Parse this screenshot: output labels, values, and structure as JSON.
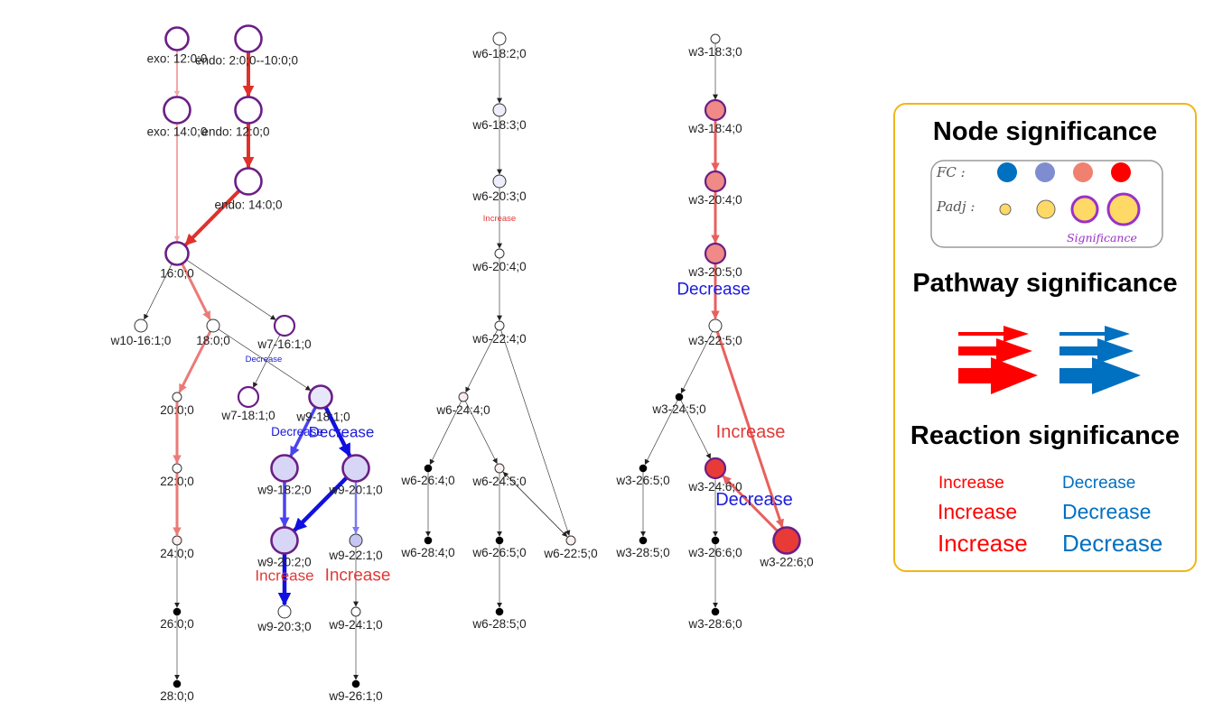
{
  "nodes": [
    {
      "id": "n1",
      "label": "exo: 12:0;0",
      "fill": "#ffffff",
      "border": "#6b1e86",
      "size": "l"
    },
    {
      "id": "n2",
      "label": "endo: 2:0;0--10:0;0",
      "fill": "#ffffff",
      "border": "#6b1e86",
      "size": "xl"
    },
    {
      "id": "n3",
      "label": "exo: 14:0;0",
      "fill": "#ffffff",
      "border": "#6b1e86",
      "size": "xl"
    },
    {
      "id": "n4",
      "label": "endo: 12:0;0",
      "fill": "#ffffff",
      "border": "#6b1e86",
      "size": "xl"
    },
    {
      "id": "n5",
      "label": "endo: 14:0;0",
      "fill": "#ffffff",
      "border": "#6b1e86",
      "size": "xl"
    },
    {
      "id": "n6",
      "label": "16:0;0",
      "fill": "#ffffff",
      "border": "#6b1e86",
      "size": "l"
    },
    {
      "id": "n7",
      "label": "w10-16:1;0",
      "fill": "#ffffff",
      "border": "#333333",
      "size": "s"
    },
    {
      "id": "n8",
      "label": "18:0;0",
      "fill": "#ffffff",
      "border": "#333333",
      "size": "s"
    },
    {
      "id": "n9",
      "label": "w7-16:1;0",
      "fill": "#ffffff",
      "border": "#6b1e86",
      "size": "m"
    },
    {
      "id": "n10",
      "label": "20:0;0",
      "fill": "#ffffff",
      "border": "#333333",
      "size": "xs"
    },
    {
      "id": "n11",
      "label": "w7-18:1;0",
      "fill": "#ffffff",
      "border": "#6b1e86",
      "size": "m"
    },
    {
      "id": "n12",
      "label": "w9-18:1;0",
      "fill": "#e7e7fb",
      "border": "#6b1e86",
      "size": "l"
    },
    {
      "id": "n13",
      "label": "22:0;0",
      "fill": "#ffffff",
      "border": "#333333",
      "size": "xs"
    },
    {
      "id": "n14",
      "label": "w9-18:2;0",
      "fill": "#d7d6f6",
      "border": "#6b1e86",
      "size": "xl"
    },
    {
      "id": "n15",
      "label": "w9-20:1;0",
      "fill": "#d7d6f6",
      "border": "#6b1e86",
      "size": "xl"
    },
    {
      "id": "n16",
      "label": "24:0;0",
      "fill": "#fcecec",
      "border": "#333333",
      "size": "xs"
    },
    {
      "id": "n17",
      "label": "w9-20:2;0",
      "fill": "#d7d6f6",
      "border": "#6b1e86",
      "size": "xl"
    },
    {
      "id": "n18",
      "label": "w9-22:1;0",
      "fill": "#c7c5f2",
      "border": "#333333",
      "size": "s"
    },
    {
      "id": "n19",
      "label": "26:0;0",
      "fill": "#000000",
      "border": "#000000",
      "size": "dot"
    },
    {
      "id": "n20",
      "label": "w9-20:3;0",
      "fill": "#ffffff",
      "border": "#333333",
      "size": "s"
    },
    {
      "id": "n21",
      "label": "w9-24:1;0",
      "fill": "#ffffff",
      "border": "#333333",
      "size": "xs"
    },
    {
      "id": "n22",
      "label": "28:0;0",
      "fill": "#000000",
      "border": "#000000",
      "size": "dot"
    },
    {
      "id": "n23",
      "label": "w9-26:1;0",
      "fill": "#000000",
      "border": "#000000",
      "size": "dot"
    },
    {
      "id": "m1",
      "label": "w6-18:2;0",
      "fill": "#ffffff",
      "border": "#333333",
      "size": "s"
    },
    {
      "id": "m2",
      "label": "w6-18:3;0",
      "fill": "#ededfb",
      "border": "#333333",
      "size": "s"
    },
    {
      "id": "m3",
      "label": "w6-20:3;0",
      "fill": "#ededfb",
      "border": "#333333",
      "size": "s"
    },
    {
      "id": "m4",
      "label": "w6-20:4;0",
      "fill": "#ffffff",
      "border": "#333333",
      "size": "xs"
    },
    {
      "id": "m5",
      "label": "w6-22:4;0",
      "fill": "#ffffff",
      "border": "#333333",
      "size": "xs"
    },
    {
      "id": "m6",
      "label": "w6-24:4;0",
      "fill": "#fbecec",
      "border": "#333333",
      "size": "xs"
    },
    {
      "id": "m7",
      "label": "w6-26:4;0",
      "fill": "#000000",
      "border": "#000000",
      "size": "dot"
    },
    {
      "id": "m8",
      "label": "w6-24:5;0",
      "fill": "#fdf0f0",
      "border": "#333333",
      "size": "xs"
    },
    {
      "id": "m9",
      "label": "w6-22:5;0",
      "fill": "#fdf0f0",
      "border": "#333333",
      "size": "xs"
    },
    {
      "id": "m10",
      "label": "w6-28:4;0",
      "fill": "#000000",
      "border": "#000000",
      "size": "dot"
    },
    {
      "id": "m11",
      "label": "w6-26:5;0",
      "fill": "#000000",
      "border": "#000000",
      "size": "dot"
    },
    {
      "id": "m12",
      "label": "w6-28:5;0",
      "fill": "#000000",
      "border": "#000000",
      "size": "dot"
    },
    {
      "id": "r1",
      "label": "w3-18:3;0",
      "fill": "#ffffff",
      "border": "#333333",
      "size": "xs"
    },
    {
      "id": "r2",
      "label": "w3-18:4;0",
      "fill": "#ef8a86",
      "border": "#6b1e86",
      "size": "m"
    },
    {
      "id": "r3",
      "label": "w3-20:4;0",
      "fill": "#ef8a86",
      "border": "#6b1e86",
      "size": "m"
    },
    {
      "id": "r4",
      "label": "w3-20:5;0",
      "fill": "#ef8a86",
      "border": "#6b1e86",
      "size": "m"
    },
    {
      "id": "r5",
      "label": "w3-22:5;0",
      "fill": "#ffffff",
      "border": "#333333",
      "size": "s"
    },
    {
      "id": "r6",
      "label": "w3-24:5;0",
      "fill": "#000000",
      "border": "#000000",
      "size": "dot"
    },
    {
      "id": "r7",
      "label": "w3-26:5;0",
      "fill": "#000000",
      "border": "#000000",
      "size": "dot"
    },
    {
      "id": "r8",
      "label": "w3-24:6;0",
      "fill": "#e83b37",
      "border": "#6b1e86",
      "size": "m"
    },
    {
      "id": "r9",
      "label": "w3-22:6;0",
      "fill": "#e83b37",
      "border": "#6b1e86",
      "size": "xl"
    },
    {
      "id": "r10",
      "label": "w3-28:5;0",
      "fill": "#000000",
      "border": "#000000",
      "size": "dot"
    },
    {
      "id": "r11",
      "label": "w3-26:6;0",
      "fill": "#000000",
      "border": "#000000",
      "size": "dot"
    },
    {
      "id": "r12",
      "label": "w3-28:6;0",
      "fill": "#000000",
      "border": "#000000",
      "size": "dot"
    }
  ],
  "edges": [
    {
      "from": "n1",
      "to": "n3",
      "color": "#f2a8a8",
      "weight": "2"
    },
    {
      "from": "n2",
      "to": "n4",
      "color": "#e0302a",
      "weight": "4"
    },
    {
      "from": "n3",
      "to": "n6",
      "color": "#f2a8a8",
      "weight": "2"
    },
    {
      "from": "n4",
      "to": "n5",
      "color": "#e0302a",
      "weight": "4"
    },
    {
      "from": "n5",
      "to": "n6",
      "color": "#e0302a",
      "weight": "4"
    },
    {
      "from": "n6",
      "to": "n7",
      "color": "#222222",
      "weight": "0.6"
    },
    {
      "from": "n6",
      "to": "n8",
      "color": "#eb7b78",
      "weight": "3"
    },
    {
      "from": "n6",
      "to": "n9",
      "color": "#222222",
      "weight": "0.6"
    },
    {
      "from": "n8",
      "to": "n10",
      "color": "#eb7b78",
      "weight": "3"
    },
    {
      "from": "n8",
      "to": "n12",
      "color": "#222222",
      "weight": "0.6"
    },
    {
      "from": "n9",
      "to": "n11",
      "color": "#222222",
      "weight": "0.6"
    },
    {
      "from": "n10",
      "to": "n13",
      "color": "#eb7b78",
      "weight": "3"
    },
    {
      "from": "n12",
      "to": "n14",
      "color": "#4a43f0",
      "weight": "3.5"
    },
    {
      "from": "n12",
      "to": "n15",
      "color": "#1010e0",
      "weight": "4.5"
    },
    {
      "from": "n13",
      "to": "n16",
      "color": "#eb7b78",
      "weight": "3"
    },
    {
      "from": "n14",
      "to": "n17",
      "color": "#4a43f0",
      "weight": "3.5"
    },
    {
      "from": "n15",
      "to": "n17",
      "color": "#1010e0",
      "weight": "4.5"
    },
    {
      "from": "n15",
      "to": "n18",
      "color": "#7d78f4",
      "weight": "2.5"
    },
    {
      "from": "n16",
      "to": "n19",
      "color": "#222222",
      "weight": "0.6"
    },
    {
      "from": "n17",
      "to": "n20",
      "color": "#1010e0",
      "weight": "4.5"
    },
    {
      "from": "n18",
      "to": "n21",
      "color": "#222222",
      "weight": "0.6"
    },
    {
      "from": "n19",
      "to": "n22",
      "color": "#222222",
      "weight": "0.6"
    },
    {
      "from": "n21",
      "to": "n23",
      "color": "#222222",
      "weight": "0.6"
    },
    {
      "from": "m1",
      "to": "m2",
      "color": "#222222",
      "weight": "0.6"
    },
    {
      "from": "m2",
      "to": "m3",
      "color": "#222222",
      "weight": "0.6"
    },
    {
      "from": "m3",
      "to": "m4",
      "color": "#222222",
      "weight": "0.6"
    },
    {
      "from": "m4",
      "to": "m5",
      "color": "#222222",
      "weight": "0.6"
    },
    {
      "from": "m5",
      "to": "m6",
      "color": "#222222",
      "weight": "0.6"
    },
    {
      "from": "m5",
      "to": "m9",
      "color": "#222222",
      "weight": "0.6"
    },
    {
      "from": "m6",
      "to": "m7",
      "color": "#222222",
      "weight": "0.6"
    },
    {
      "from": "m6",
      "to": "m8",
      "color": "#222222",
      "weight": "0.6"
    },
    {
      "from": "m7",
      "to": "m10",
      "color": "#222222",
      "weight": "0.6"
    },
    {
      "from": "m8",
      "to": "m11",
      "color": "#222222",
      "weight": "0.6"
    },
    {
      "from": "m8",
      "to": "m9",
      "color": "#222222",
      "weight": "0.6"
    },
    {
      "from": "m9",
      "to": "m8",
      "color": "#222222",
      "weight": "0.6"
    },
    {
      "from": "m11",
      "to": "m12",
      "color": "#222222",
      "weight": "0.6"
    },
    {
      "from": "r1",
      "to": "r2",
      "color": "#222222",
      "weight": "0.6"
    },
    {
      "from": "r2",
      "to": "r3",
      "color": "#e8605c",
      "weight": "3"
    },
    {
      "from": "r3",
      "to": "r4",
      "color": "#e8605c",
      "weight": "3"
    },
    {
      "from": "r4",
      "to": "r5",
      "color": "#e8605c",
      "weight": "3"
    },
    {
      "from": "r5",
      "to": "r6",
      "color": "#222222",
      "weight": "0.6"
    },
    {
      "from": "r5",
      "to": "r9",
      "color": "#e8605c",
      "weight": "3"
    },
    {
      "from": "r6",
      "to": "r7",
      "color": "#222222",
      "weight": "0.6"
    },
    {
      "from": "r6",
      "to": "r8",
      "color": "#222222",
      "weight": "0.6"
    },
    {
      "from": "r7",
      "to": "r10",
      "color": "#222222",
      "weight": "0.6"
    },
    {
      "from": "r8",
      "to": "r11",
      "color": "#222222",
      "weight": "0.6"
    },
    {
      "from": "r9",
      "to": "r8",
      "color": "#e8605c",
      "weight": "3"
    },
    {
      "from": "r11",
      "to": "r12",
      "color": "#222222",
      "weight": "0.6"
    }
  ],
  "edge_labels": [
    {
      "id": "t1",
      "text": "Decrease",
      "color": "#1a1adc",
      "size": "xs"
    },
    {
      "id": "t2",
      "text": "Decrease",
      "color": "#1a1adc",
      "size": "s"
    },
    {
      "id": "t3",
      "text": "Decrease",
      "color": "#1a1adc",
      "size": "m"
    },
    {
      "id": "t4",
      "text": "Increase",
      "color": "#e03a36",
      "size": "m"
    },
    {
      "id": "t5",
      "text": "Increase",
      "color": "#e03a36",
      "size": "l"
    },
    {
      "id": "t6",
      "text": "Increase",
      "color": "#e03a36",
      "size": "xs"
    },
    {
      "id": "t7",
      "text": "Decrease",
      "color": "#1a1adc",
      "size": "l"
    },
    {
      "id": "t8",
      "text": "Increase",
      "color": "#e03a36",
      "size": "xl"
    },
    {
      "id": "t9",
      "text": "Decrease",
      "color": "#1a1adc",
      "size": "xl"
    }
  ],
  "legend": {
    "node_title": "Node significance",
    "pathway_title": "Pathway significance",
    "reaction_title": "Reaction significance",
    "fc_label": "FC :",
    "padj_label": "Padj :",
    "significance_label": "Significance",
    "increase": "Increase",
    "decrease": "Decrease",
    "colors": {
      "increase": "#ff0000",
      "decrease": "#0070c0",
      "border": "#f2b51a",
      "significance": "#9b30c8",
      "padj_fill": "#ffd966"
    },
    "fc_colors": [
      "#0070c0",
      "#7f8dd0",
      "#f08070",
      "#ff0000"
    ]
  }
}
